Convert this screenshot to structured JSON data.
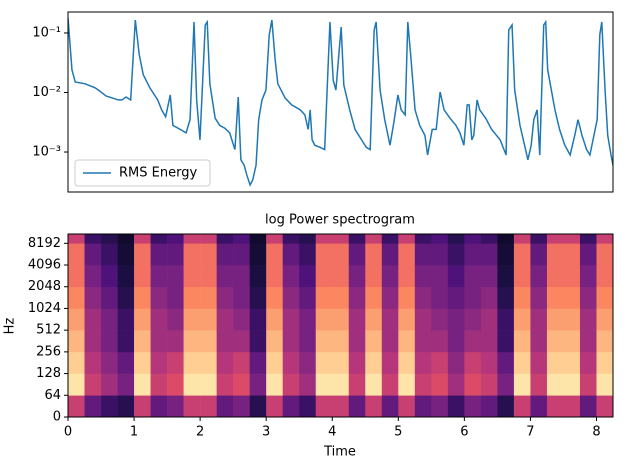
{
  "chart_data": [
    {
      "type": "line",
      "yscale": "log",
      "xlim": [
        0,
        8.26
      ],
      "ylim": [
        0.000213,
        0.225
      ],
      "yticks": [
        {
          "value": 0.001,
          "label": "10⁻³"
        },
        {
          "value": 0.01,
          "label": "10⁻²"
        },
        {
          "value": 0.1,
          "label": "10⁻¹"
        }
      ],
      "legend": "lower left",
      "x": [
        0,
        0.06,
        0.11,
        0.26,
        0.41,
        0.48,
        0.58,
        0.67,
        0.76,
        0.82,
        0.88,
        0.95,
        1.02,
        1.08,
        1.14,
        1.24,
        1.36,
        1.42,
        1.48,
        1.55,
        1.59,
        1.7,
        1.79,
        1.85,
        1.91,
        1.95,
        2.0,
        2.08,
        2.11,
        2.15,
        2.23,
        2.3,
        2.38,
        2.45,
        2.53,
        2.58,
        2.62,
        2.67,
        2.71,
        2.76,
        2.8,
        2.85,
        2.89,
        2.94,
        3.0,
        3.05,
        3.09,
        3.14,
        3.18,
        3.29,
        3.39,
        3.52,
        3.59,
        3.64,
        3.67,
        3.7,
        3.74,
        3.82,
        3.89,
        3.97,
        4.02,
        4.06,
        4.14,
        4.18,
        4.27,
        4.35,
        4.45,
        4.52,
        4.58,
        4.64,
        4.67,
        4.73,
        4.8,
        4.88,
        4.94,
        5.0,
        5.05,
        5.11,
        5.15,
        5.2,
        5.26,
        5.33,
        5.41,
        5.45,
        5.52,
        5.58,
        5.64,
        5.7,
        5.79,
        5.88,
        5.94,
        6.0,
        6.05,
        6.08,
        6.12,
        6.15,
        6.2,
        6.24,
        6.33,
        6.42,
        6.55,
        6.64,
        6.68,
        6.73,
        6.77,
        6.85,
        6.92,
        6.97,
        7.02,
        7.06,
        7.11,
        7.15,
        7.21,
        7.24,
        7.27,
        7.38,
        7.45,
        7.53,
        7.61,
        7.68,
        7.73,
        7.79,
        7.86,
        7.91,
        8.02,
        8.06,
        8.09,
        8.14,
        8.18,
        8.23,
        8.26
      ],
      "series": [
        {
          "name": "RMS Energy",
          "color": "#1f77b4",
          "values": [
            0.179,
            0.024,
            0.015,
            0.014,
            0.012,
            0.0106,
            0.0087,
            0.0081,
            0.0075,
            0.0075,
            0.0084,
            0.0075,
            0.165,
            0.043,
            0.02,
            0.012,
            0.0075,
            0.0051,
            0.0039,
            0.0091,
            0.0028,
            0.0024,
            0.0021,
            0.0035,
            0.153,
            0.0075,
            0.0016,
            0.136,
            0.153,
            0.014,
            0.0037,
            0.0028,
            0.0025,
            0.0021,
            0.0011,
            0.0084,
            0.00074,
            0.0006,
            0.00041,
            0.00028,
            0.00034,
            0.0006,
            0.0035,
            0.0075,
            0.011,
            0.093,
            0.165,
            0.035,
            0.014,
            0.0081,
            0.0062,
            0.0051,
            0.0042,
            0.0024,
            0.0051,
            0.0016,
            0.0013,
            0.0012,
            0.0011,
            0.153,
            0.016,
            0.011,
            0.126,
            0.0134,
            0.0051,
            0.0024,
            0.0016,
            0.0012,
            0.0011,
            0.112,
            0.153,
            0.011,
            0.0035,
            0.0013,
            0.0032,
            0.0091,
            0.0051,
            0.0042,
            0.153,
            0.035,
            0.0051,
            0.0028,
            0.0019,
            0.00089,
            0.0024,
            0.0024,
            0.0102,
            0.0051,
            0.0037,
            0.0028,
            0.0021,
            0.0013,
            0.0062,
            0.0062,
            0.0016,
            0.0019,
            0.0075,
            0.0051,
            0.0037,
            0.0024,
            0.0016,
            0.00089,
            0.112,
            0.136,
            0.011,
            0.0028,
            0.0013,
            0.00074,
            0.0013,
            0.0035,
            0.0051,
            0.00089,
            0.136,
            0.153,
            0.024,
            0.0051,
            0.0024,
            0.0013,
            0.00089,
            0.0019,
            0.0035,
            0.0019,
            0.0011,
            0.00089,
            0.0035,
            0.093,
            0.153,
            0.011,
            0.0019,
            0.00089,
            0.0006
          ]
        }
      ]
    },
    {
      "type": "heatmap",
      "title": "log Power spectrogram",
      "xlabel": "Time",
      "ylabel": "Hz",
      "colormap": "magma",
      "clim": [
        0,
        1
      ],
      "yscale": "symlog",
      "linthresh": 64,
      "xlim": [
        0,
        8.25
      ],
      "ylim": [
        0,
        11025
      ],
      "xticks": [
        0,
        1,
        2,
        3,
        4,
        5,
        6,
        7,
        8
      ],
      "yticks": [
        0,
        64,
        128,
        256,
        512,
        1024,
        2048,
        4096,
        8192
      ],
      "xbins": [
        0,
        0.25,
        0.5,
        0.75,
        1,
        1.25,
        1.5,
        1.75,
        2,
        2.25,
        2.5,
        2.75,
        3,
        3.25,
        3.5,
        3.75,
        4,
        4.25,
        4.5,
        4.75,
        5,
        5.25,
        5.5,
        5.75,
        6,
        6.25,
        6.5,
        6.75,
        7,
        7.25,
        7.5,
        7.75,
        8,
        8.25
      ],
      "ybins": [
        0,
        64,
        128,
        256,
        512,
        1024,
        2048,
        4096,
        8192,
        11025
      ],
      "values": [
        [
          0.55,
          0.3,
          0.2,
          0.15,
          0.55,
          0.3,
          0.35,
          0.55,
          0.55,
          0.3,
          0.35,
          0.15,
          0.55,
          0.3,
          0.2,
          0.55,
          0.55,
          0.3,
          0.55,
          0.3,
          0.55,
          0.3,
          0.35,
          0.2,
          0.35,
          0.3,
          0.15,
          0.55,
          0.3,
          0.55,
          0.55,
          0.3,
          0.55
        ],
        [
          0.95,
          0.55,
          0.45,
          0.35,
          0.95,
          0.55,
          0.6,
          0.95,
          0.95,
          0.55,
          0.6,
          0.35,
          0.95,
          0.55,
          0.45,
          0.95,
          0.95,
          0.55,
          0.95,
          0.55,
          0.95,
          0.55,
          0.6,
          0.45,
          0.6,
          0.55,
          0.35,
          0.95,
          0.55,
          0.95,
          0.95,
          0.55,
          0.95
        ],
        [
          0.9,
          0.5,
          0.4,
          0.3,
          0.9,
          0.5,
          0.55,
          0.9,
          0.9,
          0.5,
          0.55,
          0.3,
          0.9,
          0.5,
          0.4,
          0.9,
          0.9,
          0.5,
          0.9,
          0.5,
          0.9,
          0.5,
          0.55,
          0.4,
          0.55,
          0.5,
          0.3,
          0.9,
          0.5,
          0.9,
          0.9,
          0.5,
          0.9
        ],
        [
          0.85,
          0.45,
          0.35,
          0.2,
          0.85,
          0.45,
          0.45,
          0.85,
          0.85,
          0.45,
          0.45,
          0.2,
          0.85,
          0.45,
          0.35,
          0.85,
          0.85,
          0.45,
          0.85,
          0.45,
          0.85,
          0.45,
          0.45,
          0.35,
          0.45,
          0.45,
          0.2,
          0.85,
          0.45,
          0.85,
          0.85,
          0.45,
          0.85
        ],
        [
          0.8,
          0.45,
          0.35,
          0.2,
          0.8,
          0.45,
          0.4,
          0.8,
          0.8,
          0.45,
          0.4,
          0.2,
          0.8,
          0.45,
          0.35,
          0.8,
          0.8,
          0.45,
          0.8,
          0.45,
          0.8,
          0.45,
          0.4,
          0.35,
          0.4,
          0.45,
          0.2,
          0.8,
          0.45,
          0.8,
          0.8,
          0.45,
          0.8
        ],
        [
          0.75,
          0.4,
          0.3,
          0.15,
          0.75,
          0.4,
          0.35,
          0.75,
          0.75,
          0.4,
          0.35,
          0.15,
          0.75,
          0.4,
          0.3,
          0.75,
          0.75,
          0.4,
          0.75,
          0.4,
          0.75,
          0.4,
          0.35,
          0.3,
          0.35,
          0.4,
          0.15,
          0.75,
          0.4,
          0.75,
          0.75,
          0.4,
          0.75
        ],
        [
          0.7,
          0.35,
          0.25,
          0.12,
          0.7,
          0.35,
          0.35,
          0.7,
          0.7,
          0.35,
          0.35,
          0.12,
          0.7,
          0.35,
          0.25,
          0.7,
          0.7,
          0.35,
          0.7,
          0.35,
          0.7,
          0.35,
          0.35,
          0.25,
          0.35,
          0.35,
          0.12,
          0.7,
          0.35,
          0.7,
          0.7,
          0.35,
          0.7
        ],
        [
          0.7,
          0.3,
          0.2,
          0.1,
          0.7,
          0.3,
          0.3,
          0.7,
          0.7,
          0.3,
          0.3,
          0.1,
          0.7,
          0.3,
          0.2,
          0.7,
          0.7,
          0.3,
          0.7,
          0.3,
          0.7,
          0.3,
          0.3,
          0.2,
          0.3,
          0.3,
          0.1,
          0.7,
          0.3,
          0.7,
          0.7,
          0.3,
          0.7
        ],
        [
          0.55,
          0.2,
          0.15,
          0.08,
          0.55,
          0.2,
          0.25,
          0.55,
          0.55,
          0.2,
          0.25,
          0.08,
          0.55,
          0.2,
          0.15,
          0.55,
          0.55,
          0.2,
          0.55,
          0.2,
          0.55,
          0.2,
          0.25,
          0.15,
          0.25,
          0.2,
          0.08,
          0.55,
          0.2,
          0.55,
          0.55,
          0.2,
          0.55
        ]
      ]
    }
  ]
}
